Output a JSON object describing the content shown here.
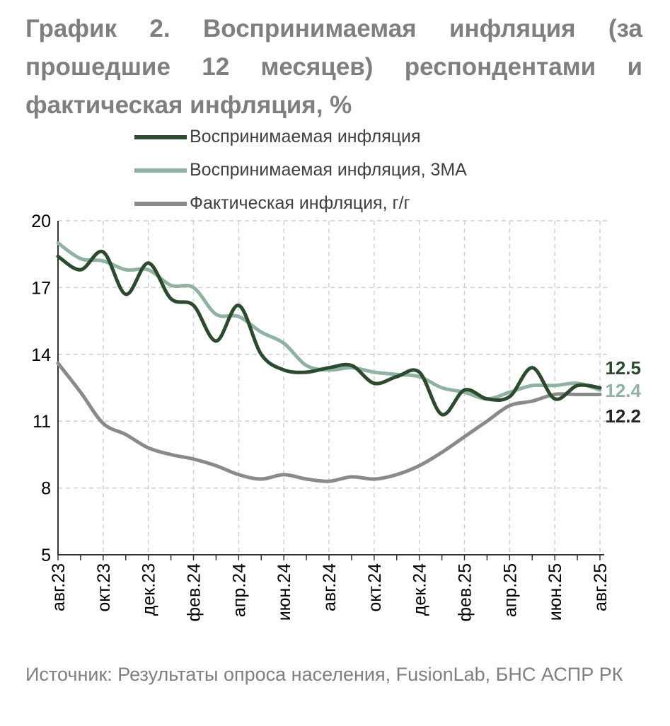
{
  "chart_data": {
    "type": "line",
    "title": "График 2. Воспринимаемая инфляция (за прошедшие 12 месяцев) респондентами и фактическая инфляция, %",
    "ylim": [
      5,
      20
    ],
    "yticks": [
      "20",
      "17",
      "14",
      "11",
      "8",
      "5"
    ],
    "ytick_values": [
      20,
      17,
      14,
      11,
      8,
      5
    ],
    "x_count": 25,
    "x_tick_labels": [
      "авг.23",
      "окт.23",
      "дек.23",
      "фев.24",
      "апр.24",
      "июн.24",
      "авг.24",
      "окт.24",
      "дек.24",
      "фев.25",
      "апр.25",
      "июн.25",
      "авг.25"
    ],
    "grid": "dashed",
    "legend_position": "top",
    "series": [
      {
        "name": "Воспринимаемая инфляция",
        "color": "#2b4a2e",
        "values": [
          18.4,
          17.8,
          18.6,
          16.7,
          18.1,
          16.5,
          16.2,
          14.6,
          16.2,
          14.0,
          13.3,
          13.2,
          13.4,
          13.5,
          12.7,
          13.0,
          13.2,
          11.3,
          12.4,
          12.0,
          12.1,
          13.4,
          12.0,
          12.6,
          12.5
        ],
        "end_label": "12.5"
      },
      {
        "name": "Воспринимаемая инфляция, 3МА",
        "color": "#8fb3a0",
        "values": [
          19.0,
          18.3,
          18.2,
          17.8,
          17.8,
          17.1,
          17.0,
          15.8,
          15.7,
          15.0,
          14.5,
          13.5,
          13.3,
          13.4,
          13.2,
          13.1,
          13.0,
          12.5,
          12.3,
          12.0,
          12.3,
          12.6,
          12.6,
          12.7,
          12.4
        ],
        "end_label": "12.4"
      },
      {
        "name": "Фактическая инфляция, г/г",
        "color": "#8a8a8a",
        "values": [
          13.6,
          12.3,
          10.9,
          10.4,
          9.8,
          9.5,
          9.3,
          9.0,
          8.6,
          8.4,
          8.6,
          8.4,
          8.3,
          8.5,
          8.4,
          8.6,
          9.0,
          9.6,
          10.3,
          11.0,
          11.7,
          11.9,
          12.2,
          12.2,
          12.2
        ],
        "end_label": "12.2"
      }
    ],
    "end_label_colors": [
      "#2b4a2e",
      "#8fb3a0",
      "#262626"
    ]
  },
  "source": "Источник: Результаты опроса населения, FusionLab, БНС АСПР РК",
  "colors": {
    "title": "#7f7f7f",
    "axis_text": "#000000",
    "grid": "#d0d0d0"
  }
}
